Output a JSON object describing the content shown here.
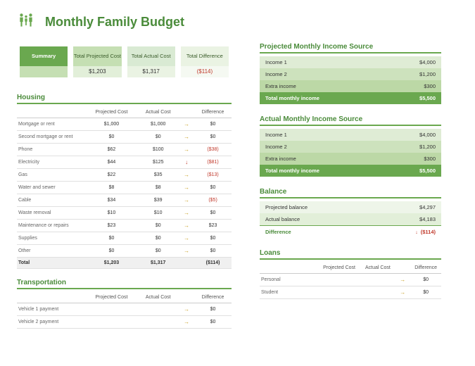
{
  "title": "Monthly Family Budget",
  "summary": {
    "label": "Summary",
    "cols": [
      {
        "h": "Total Projected Cost",
        "v": "$1,203"
      },
      {
        "h": "Total Actual Cost",
        "v": "$1,317"
      },
      {
        "h": "Total Difference",
        "v": "($114)",
        "neg": true
      }
    ]
  },
  "housing": {
    "title": "Housing",
    "headers": [
      "",
      "Projected Cost",
      "Actual Cost",
      "",
      "Difference"
    ],
    "rows": [
      {
        "label": "Mortgage or rent",
        "p": "$1,000",
        "a": "$1,000",
        "arrow": "→",
        "d": "$0"
      },
      {
        "label": "Second mortgage or rent",
        "p": "$0",
        "a": "$0",
        "arrow": "→",
        "d": "$0"
      },
      {
        "label": "Phone",
        "p": "$62",
        "a": "$100",
        "arrow": "→",
        "d": "($38)",
        "neg": true
      },
      {
        "label": "Electricity",
        "p": "$44",
        "a": "$125",
        "arrow": "↓",
        "d": "($81)",
        "neg": true,
        "down": true
      },
      {
        "label": "Gas",
        "p": "$22",
        "a": "$35",
        "arrow": "→",
        "d": "($13)",
        "neg": true
      },
      {
        "label": "Water and sewer",
        "p": "$8",
        "a": "$8",
        "arrow": "→",
        "d": "$0"
      },
      {
        "label": "Cable",
        "p": "$34",
        "a": "$39",
        "arrow": "→",
        "d": "($5)",
        "neg": true
      },
      {
        "label": "Waste removal",
        "p": "$10",
        "a": "$10",
        "arrow": "→",
        "d": "$0"
      },
      {
        "label": "Maintenance or repairs",
        "p": "$23",
        "a": "$0",
        "arrow": "→",
        "d": "$23"
      },
      {
        "label": "Supplies",
        "p": "$0",
        "a": "$0",
        "arrow": "→",
        "d": "$0"
      },
      {
        "label": "Other",
        "p": "$0",
        "a": "$0",
        "arrow": "→",
        "d": "$0"
      }
    ],
    "total": {
      "label": "Total",
      "p": "$1,203",
      "a": "$1,317",
      "d": "($114)",
      "neg": true
    }
  },
  "transportation": {
    "title": "Transportation",
    "headers": [
      "",
      "Projected Cost",
      "Actual Cost",
      "",
      "Difference"
    ],
    "rows": [
      {
        "label": "Vehicle 1 payment",
        "p": "",
        "a": "",
        "arrow": "→",
        "d": "$0"
      },
      {
        "label": "Vehicle 2 payment",
        "p": "",
        "a": "",
        "arrow": "→",
        "d": "$0"
      }
    ]
  },
  "projected_income": {
    "title": "Projected Monthly Income Source",
    "rows": [
      {
        "label": "Income 1",
        "v": "$4,000"
      },
      {
        "label": "Income 2",
        "v": "$1,200"
      },
      {
        "label": "Extra income",
        "v": "$300"
      }
    ],
    "total": {
      "label": "Total monthly income",
      "v": "$5,500"
    }
  },
  "actual_income": {
    "title": "Actual Monthly Income Source",
    "rows": [
      {
        "label": "Income 1",
        "v": "$4,000"
      },
      {
        "label": "Income 2",
        "v": "$1,200"
      },
      {
        "label": "Extra income",
        "v": "$300"
      }
    ],
    "total": {
      "label": "Total monthly income",
      "v": "$5,500"
    }
  },
  "balance": {
    "title": "Balance",
    "rows": [
      {
        "label": "Projected balance",
        "v": "$4,297"
      },
      {
        "label": "Actual balance",
        "v": "$4,183"
      }
    ],
    "diff": {
      "label": "Difference",
      "v": "($114)",
      "neg": true
    }
  },
  "loans": {
    "title": "Loans",
    "headers": [
      "",
      "Projected Cost",
      "Actual Cost",
      "",
      "Difference"
    ],
    "rows": [
      {
        "label": "Personal",
        "p": "",
        "a": "",
        "arrow": "→",
        "d": "$0"
      },
      {
        "label": "Student",
        "p": "",
        "a": "",
        "arrow": "→",
        "d": "$0"
      }
    ]
  }
}
